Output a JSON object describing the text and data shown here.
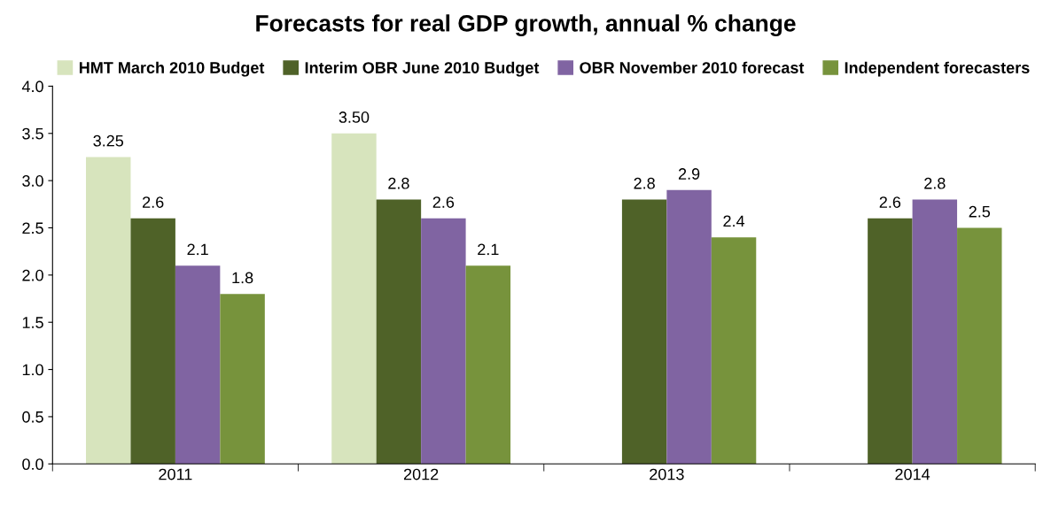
{
  "chart_data": {
    "type": "bar",
    "title": "Forecasts for real GDP growth, annual % change",
    "categories": [
      "2011",
      "2012",
      "2013",
      "2014"
    ],
    "series": [
      {
        "name": "HMT March 2010 Budget",
        "color": "#d7e4bd",
        "values": [
          3.25,
          3.5,
          null,
          null
        ],
        "value_labels": [
          "3.25",
          "3.50",
          null,
          null
        ]
      },
      {
        "name": "Interim OBR June 2010 Budget",
        "color": "#4f6228",
        "values": [
          2.6,
          2.8,
          2.8,
          2.6
        ],
        "value_labels": [
          "2.6",
          "2.8",
          "2.8",
          "2.6"
        ]
      },
      {
        "name": "OBR November 2010 forecast",
        "color": "#8064a2",
        "values": [
          2.1,
          2.6,
          2.9,
          2.8
        ],
        "value_labels": [
          "2.1",
          "2.6",
          "2.9",
          "2.8"
        ]
      },
      {
        "name": "Independent forecasters",
        "color": "#77933c",
        "values": [
          1.8,
          2.1,
          2.4,
          2.5
        ],
        "value_labels": [
          "1.8",
          "2.1",
          "2.4",
          "2.5"
        ]
      }
    ],
    "ylim": [
      0,
      4
    ],
    "yticks": [
      {
        "value": 0,
        "label": "0.0"
      },
      {
        "value": 0.5,
        "label": "0.5"
      },
      {
        "value": 1,
        "label": "1.0"
      },
      {
        "value": 1.5,
        "label": "1.5"
      },
      {
        "value": 2,
        "label": "2.0"
      },
      {
        "value": 2.5,
        "label": "2.5"
      },
      {
        "value": 3,
        "label": "3.0"
      },
      {
        "value": 3.5,
        "label": "3.5"
      },
      {
        "value": 4,
        "label": "4.0"
      }
    ],
    "grid": false,
    "legend": "top"
  }
}
